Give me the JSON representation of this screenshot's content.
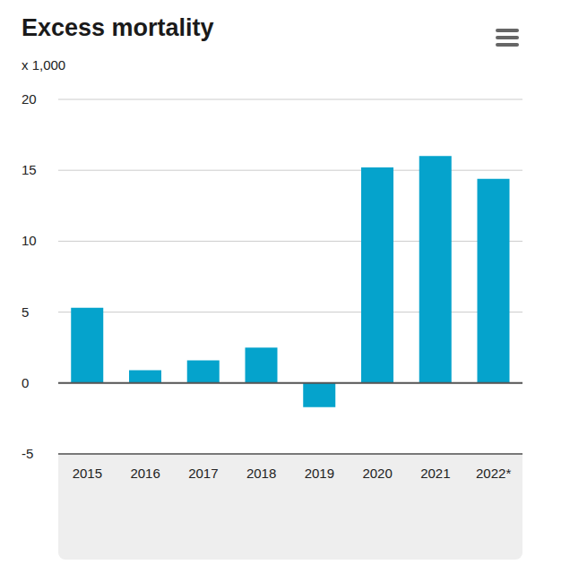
{
  "chart_data": {
    "type": "bar",
    "title": "Excess mortality",
    "subtitle": "x 1,000",
    "categories": [
      "2015",
      "2016",
      "2017",
      "2018",
      "2019",
      "2020",
      "2021",
      "2022*"
    ],
    "values": [
      5.3,
      0.9,
      1.6,
      2.5,
      -1.7,
      15.2,
      16.0,
      14.4
    ],
    "color": "#05a3cc",
    "ylim": [
      -5,
      20
    ],
    "yticks": [
      -5,
      0,
      5,
      10,
      15,
      20
    ],
    "grid": true
  }
}
